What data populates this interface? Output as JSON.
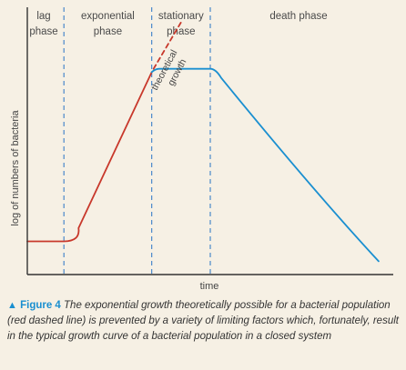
{
  "chart_data": {
    "type": "line",
    "title": "",
    "xlabel": "time",
    "ylabel": "log of numbers of bacteria",
    "phases": [
      {
        "name_line1": "lag",
        "name_line2": "phase"
      },
      {
        "name_line1": "exponential",
        "name_line2": "phase"
      },
      {
        "name_line1": "stationary",
        "name_line2": "phase"
      },
      {
        "name_line1": "death phase",
        "name_line2": ""
      }
    ],
    "phase_boundaries": [
      1.0,
      3.4,
      5.0
    ],
    "series": [
      {
        "segment": "lag",
        "color": "#c8382b",
        "style": "solid",
        "points": [
          [
            0,
            1.0
          ],
          [
            1.0,
            1.0
          ],
          [
            1.4,
            1.4
          ],
          [
            3.4,
            6.1
          ]
        ]
      },
      {
        "segment": "stationary",
        "color": "#1a8fd0",
        "style": "solid",
        "points": [
          [
            3.4,
            6.1
          ],
          [
            3.5,
            6.2
          ],
          [
            5.0,
            6.2
          ],
          [
            8.2,
            2.0
          ],
          [
            9.6,
            0.4
          ]
        ]
      },
      {
        "segment": "theoretical",
        "color": "#c8382b",
        "style": "dashed",
        "points": [
          [
            3.45,
            6.2
          ],
          [
            4.2,
            7.6
          ]
        ]
      }
    ],
    "annotation": {
      "line1": "theoretical",
      "line2": "growth"
    },
    "xlim": [
      0,
      10
    ],
    "ylim": [
      0,
      8
    ]
  },
  "caption": {
    "triangle": "▲",
    "figure_label": "Figure 4",
    "text": "The exponential growth theoretically possible for a bacterial population (red dashed line) is prevented by a variety of limiting factors which, fortunately, result in the typical growth curve of a bacterial population in a closed system"
  },
  "colors": {
    "red": "#c8382b",
    "blue": "#1a8fd0",
    "axis": "#333333"
  }
}
